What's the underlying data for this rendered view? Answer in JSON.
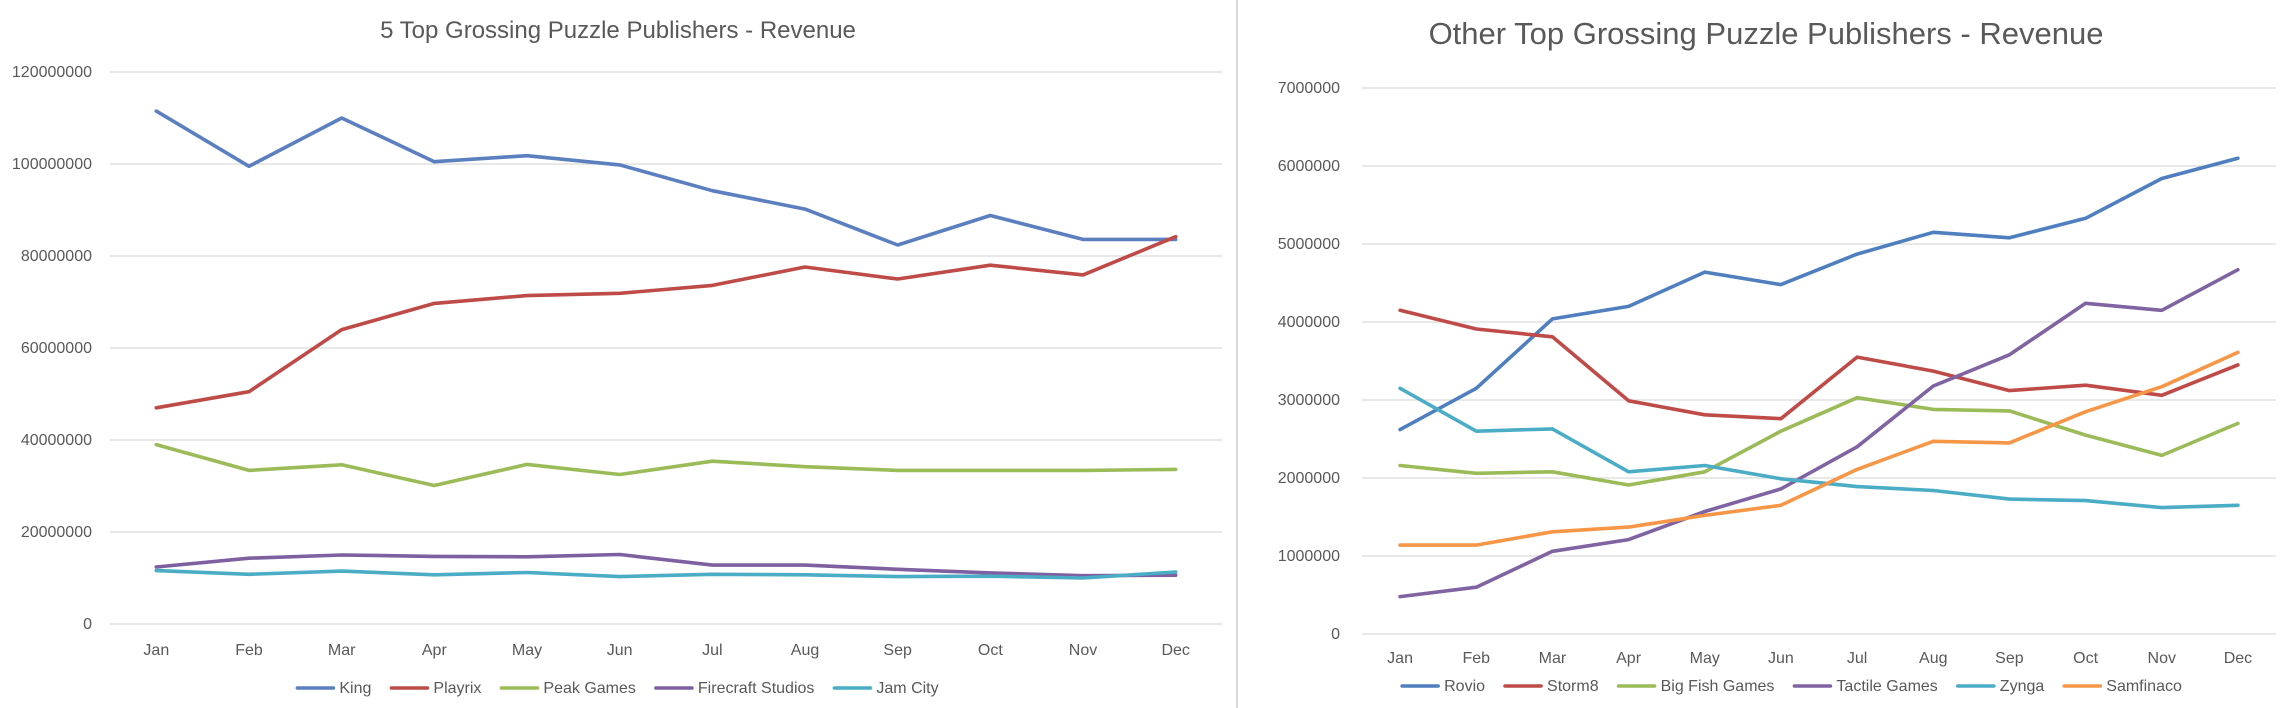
{
  "chart_data": [
    {
      "type": "line",
      "title": "5 Top Grossing Puzzle Publishers - Revenue",
      "xlabel": "",
      "ylabel": "",
      "categories": [
        "Jan",
        "Feb",
        "Mar",
        "Apr",
        "May",
        "Jun",
        "Jul",
        "Aug",
        "Sep",
        "Oct",
        "Nov",
        "Dec"
      ],
      "ylim": [
        0,
        120000000
      ],
      "yticks": [
        "0",
        "20000000",
        "40000000",
        "60000000",
        "80000000",
        "100000000",
        "120000000"
      ],
      "grid": true,
      "legend_position": "bottom",
      "series": [
        {
          "name": "King",
          "color": "#5b7fbf",
          "values": [
            111500000,
            99500000,
            110000000,
            100500000,
            101800000,
            99800000,
            94200000,
            90200000,
            82400000,
            88800000,
            83600000,
            83600000
          ]
        },
        {
          "name": "Playrix",
          "color": "#be4b48",
          "values": [
            47000000,
            50500000,
            64000000,
            69700000,
            71400000,
            71900000,
            73600000,
            77600000,
            75000000,
            78000000,
            75900000,
            84200000
          ]
        },
        {
          "name": "Peak Games",
          "color": "#9bbb59",
          "values": [
            39000000,
            33400000,
            34600000,
            30100000,
            34700000,
            32500000,
            35400000,
            34200000,
            33400000,
            33400000,
            33400000,
            33600000
          ]
        },
        {
          "name": "Firecraft Studios",
          "color": "#7e5fa0",
          "values": [
            12400000,
            14300000,
            15000000,
            14700000,
            14600000,
            15100000,
            12800000,
            12800000,
            11900000,
            11100000,
            10500000,
            10600000
          ]
        },
        {
          "name": "Jam City",
          "color": "#4bacc6",
          "values": [
            11600000,
            10800000,
            11500000,
            10700000,
            11200000,
            10300000,
            10800000,
            10700000,
            10300000,
            10400000,
            10000000,
            11300000
          ]
        }
      ]
    },
    {
      "type": "line",
      "title": "Other Top Grossing Puzzle Publishers - Revenue",
      "xlabel": "",
      "ylabel": "",
      "categories": [
        "Jan",
        "Feb",
        "Mar",
        "Apr",
        "May",
        "Jun",
        "Jul",
        "Aug",
        "Sep",
        "Oct",
        "Nov",
        "Dec"
      ],
      "ylim": [
        0,
        7000000
      ],
      "yticks": [
        "0",
        "1000000",
        "2000000",
        "3000000",
        "4000000",
        "5000000",
        "6000000",
        "7000000"
      ],
      "grid": true,
      "legend_position": "bottom",
      "series": [
        {
          "name": "Rovio",
          "color": "#4f7fbf",
          "values": [
            2620000,
            3150000,
            4040000,
            4200000,
            4640000,
            4480000,
            4870000,
            5150000,
            5080000,
            5330000,
            5840000,
            6100000
          ]
        },
        {
          "name": "Storm8",
          "color": "#be4b48",
          "values": [
            4150000,
            3910000,
            3810000,
            2990000,
            2810000,
            2760000,
            3550000,
            3370000,
            3120000,
            3190000,
            3060000,
            3450000
          ]
        },
        {
          "name": "Big Fish Games",
          "color": "#9bbb59",
          "values": [
            2160000,
            2060000,
            2080000,
            1910000,
            2080000,
            2600000,
            3030000,
            2880000,
            2860000,
            2550000,
            2290000,
            2700000
          ]
        },
        {
          "name": "Tactile Games",
          "color": "#8064a2",
          "values": [
            480000,
            600000,
            1060000,
            1210000,
            1570000,
            1860000,
            2400000,
            3180000,
            3580000,
            4240000,
            4150000,
            4670000
          ]
        },
        {
          "name": "Zynga",
          "color": "#4bacc6",
          "values": [
            3150000,
            2600000,
            2630000,
            2080000,
            2160000,
            1990000,
            1890000,
            1840000,
            1730000,
            1710000,
            1620000,
            1650000
          ]
        },
        {
          "name": "Samfinaco",
          "color": "#f79646",
          "values": [
            1140000,
            1140000,
            1310000,
            1370000,
            1520000,
            1650000,
            2110000,
            2470000,
            2450000,
            2850000,
            3170000,
            3610000
          ]
        }
      ]
    }
  ]
}
